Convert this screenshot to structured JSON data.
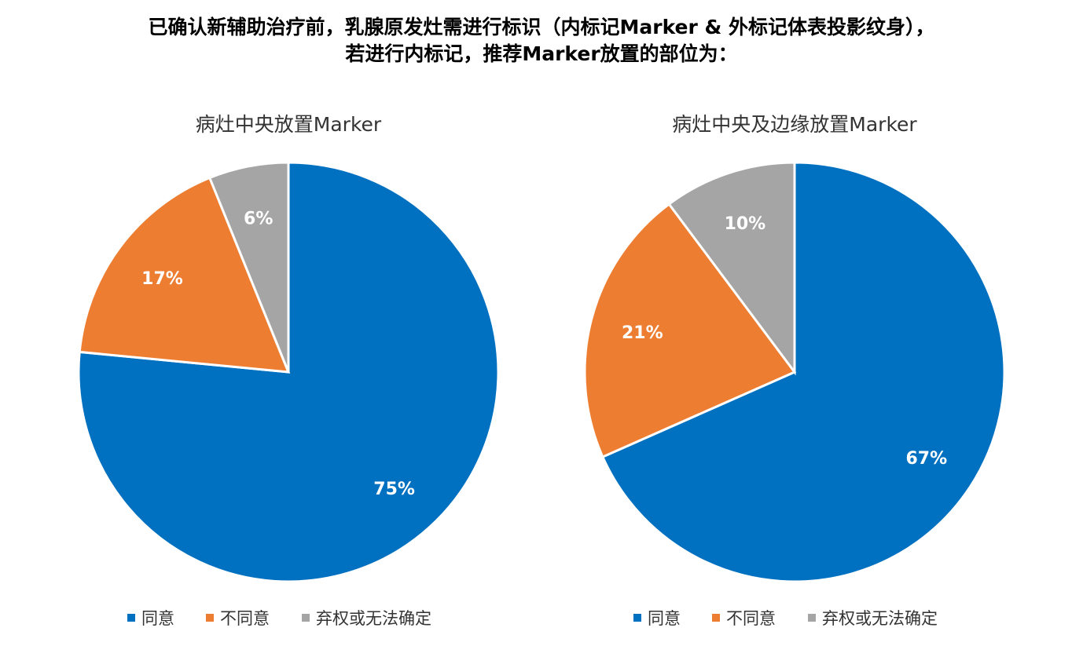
{
  "title_line1": "已确认新辅助治疗前，乳腺原发灶需进行标识（内标记Marker & 外标记体表投影纹身），",
  "title_line2": "若进行内标记，推荐Marker放置的部位为：",
  "chart_data": [
    {
      "type": "pie",
      "title": "病灶中央放置Marker",
      "categories": [
        "同意",
        "不同意",
        "弃权或无法确定"
      ],
      "values": [
        75,
        17,
        6
      ],
      "labels": [
        "75%",
        "17%",
        "6%"
      ],
      "colors": [
        "#0070C0",
        "#ED7D31",
        "#A5A5A5"
      ],
      "legend": "bottom",
      "start": "top",
      "direction": "clockwise"
    },
    {
      "type": "pie",
      "title": "病灶中央及边缘放置Marker",
      "categories": [
        "同意",
        "不同意",
        "弃权或无法确定"
      ],
      "values": [
        67,
        21,
        10
      ],
      "labels": [
        "67%",
        "21%",
        "10%"
      ],
      "colors": [
        "#0070C0",
        "#ED7D31",
        "#A5A5A5"
      ],
      "legend": "bottom",
      "start": "top",
      "direction": "clockwise"
    }
  ]
}
